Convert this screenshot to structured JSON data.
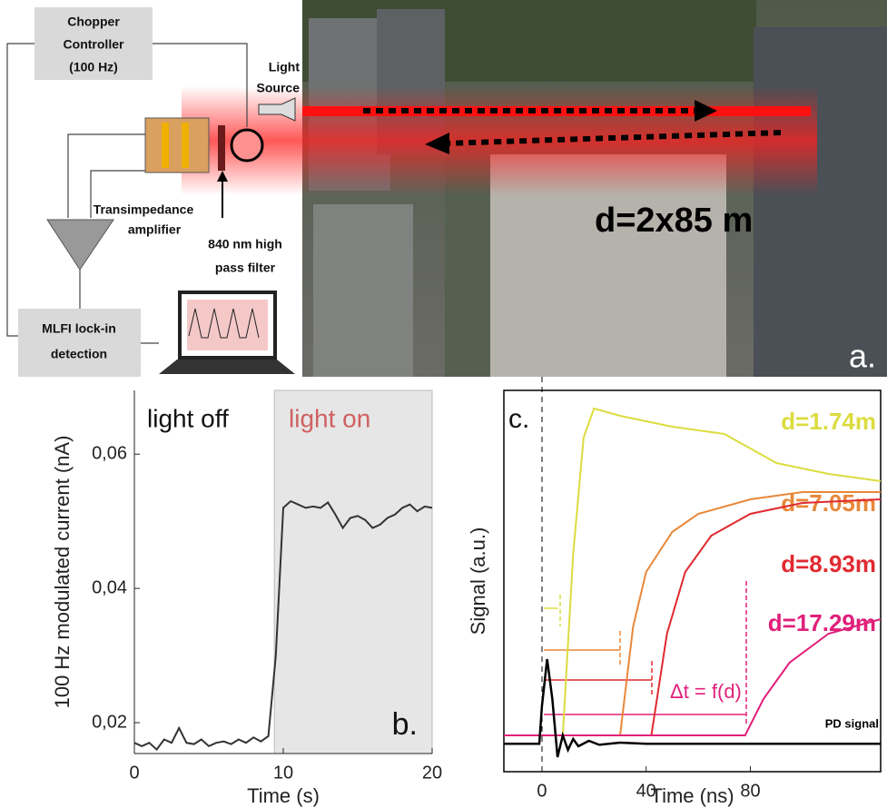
{
  "diagram": {
    "chopper": [
      "Chopper",
      "Controller",
      "(100 Hz)"
    ],
    "light_source": [
      "Light",
      "Source"
    ],
    "amplifier": [
      "Transimpedance",
      "amplifier"
    ],
    "filter": [
      "840 nm high",
      "pass filter"
    ],
    "lockin": [
      "MLFI lock-in",
      "detection"
    ],
    "distance": "d=2x85 m",
    "panel": "a."
  },
  "chart_data": [
    {
      "type": "line",
      "xlabel": "Time (s)",
      "ylabel": "100 Hz modulated current (nA)",
      "annotations": [
        "light off",
        "light on",
        "b."
      ],
      "shaded_region": [
        9.4,
        20
      ],
      "x": [
        0,
        0.5,
        1,
        1.5,
        2,
        2.5,
        3,
        3.5,
        4,
        4.5,
        5,
        5.5,
        6,
        6.5,
        7,
        7.5,
        8,
        8.5,
        9,
        9.5,
        10,
        10.5,
        11,
        11.5,
        12,
        12.5,
        13,
        13.5,
        14,
        14.5,
        15,
        15.5,
        16,
        16.5,
        17,
        17.5,
        18,
        18.5,
        19,
        19.5,
        20
      ],
      "series": [
        {
          "color": "#333333",
          "values": [
            0.017,
            0.0165,
            0.017,
            0.016,
            0.0175,
            0.017,
            0.0192,
            0.017,
            0.0168,
            0.0175,
            0.0165,
            0.017,
            0.0172,
            0.0168,
            0.0175,
            0.017,
            0.0178,
            0.0172,
            0.018,
            0.03,
            0.052,
            0.053,
            0.0525,
            0.052,
            0.0522,
            0.052,
            0.0528,
            0.051,
            0.049,
            0.0505,
            0.0508,
            0.0502,
            0.049,
            0.0495,
            0.0505,
            0.051,
            0.052,
            0.0525,
            0.0515,
            0.0522,
            0.052
          ]
        }
      ],
      "xlim": [
        0,
        20
      ],
      "xticks": [
        0,
        10,
        20
      ],
      "ylim": [
        0.0154,
        0.0695
      ],
      "yticks": [
        {
          "value": 0.02,
          "label": "0,02"
        },
        {
          "value": 0.04,
          "label": "0,04"
        },
        {
          "value": 0.06,
          "label": "0,06"
        }
      ]
    },
    {
      "type": "line",
      "xlabel": "Time (ns)",
      "ylabel": "Signal (a.u.)",
      "annotations": [
        "c.",
        "Δt = f(d)"
      ],
      "series": [
        {
          "name": "d=1.74m",
          "color": "#dcdc40",
          "x": [
            -14.6,
            8,
            12,
            16,
            20,
            30,
            50,
            70,
            90,
            110,
            130
          ],
          "values": [
            0.1,
            0.1,
            0.6,
            0.92,
            1.0,
            0.98,
            0.95,
            0.93,
            0.85,
            0.82,
            0.8
          ]
        },
        {
          "name": "d=7.05m",
          "color": "#e8883a",
          "x": [
            -14.6,
            30,
            35,
            40,
            50,
            60,
            80,
            100,
            130
          ],
          "values": [
            0.1,
            0.1,
            0.4,
            0.55,
            0.66,
            0.71,
            0.75,
            0.77,
            0.77
          ]
        },
        {
          "name": "d=8.93m",
          "color": "#e02a30",
          "x": [
            -14.6,
            42,
            48,
            55,
            65,
            80,
            100,
            130
          ],
          "values": [
            0.1,
            0.1,
            0.38,
            0.55,
            0.65,
            0.71,
            0.74,
            0.75
          ]
        },
        {
          "name": "d=17.29m",
          "color": "#e0207a",
          "x": [
            -14.6,
            78,
            85,
            95,
            110,
            130
          ],
          "values": [
            0.1,
            0.1,
            0.2,
            0.3,
            0.38,
            0.42
          ]
        },
        {
          "name": "PD signal",
          "color": "#000000",
          "x": [
            -14.6,
            -1,
            0,
            2,
            4,
            6,
            8,
            10,
            12,
            14,
            18,
            22,
            30,
            40,
            130
          ],
          "values": [
            0.077,
            0.077,
            0.18,
            0.31,
            0.2,
            0.04,
            0.1,
            0.06,
            0.09,
            0.07,
            0.085,
            0.074,
            0.08,
            0.077,
            0.077
          ]
        }
      ],
      "xlim": [
        -14.6,
        130
      ],
      "xticks": [
        0,
        40,
        80
      ],
      "ylim": [
        0,
        1.05
      ]
    }
  ]
}
